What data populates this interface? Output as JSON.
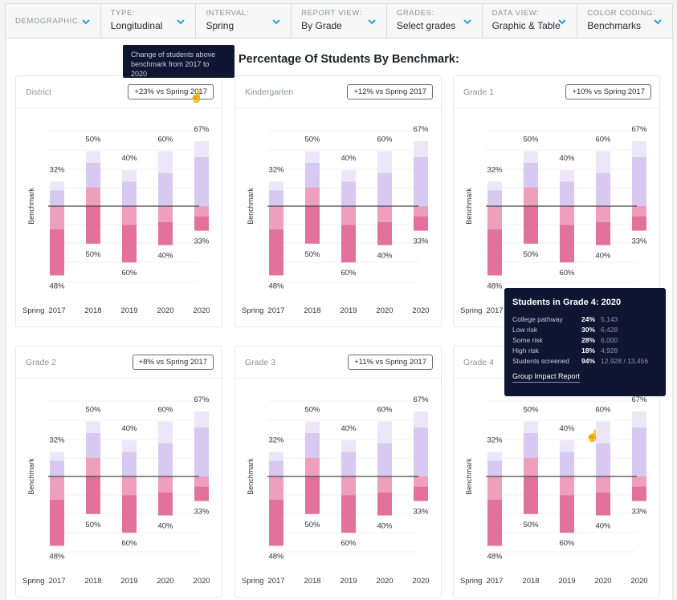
{
  "filters": [
    {
      "label": "DEMOGRAPHIC...",
      "value": ""
    },
    {
      "label": "TYPE:",
      "value": "Longitudinal"
    },
    {
      "label": "INTERVAL:",
      "value": "Spring"
    },
    {
      "label": "REPORT VIEW:",
      "value": "By Grade"
    },
    {
      "label": "GRADES:",
      "value": "Select grades"
    },
    {
      "label": "DATA VIEW:",
      "value": "Graphic & Table"
    },
    {
      "label": "COLOR CODING:",
      "value": "Benchmarks"
    }
  ],
  "page_title": "Percentage Of Students By Benchmark:",
  "header_tooltip": "Change of students above benchmark from 2017 to 2020",
  "colors": {
    "college_pathway": "#ece6f9",
    "low_risk": "#d7c9f1",
    "some_risk": "#ee9fbb",
    "high_risk": "#e2719c",
    "benchmark_line": "#444444",
    "tooltip_bg": "#0e1632"
  },
  "hover_tooltip": {
    "title": "Students in Grade 4: 2020",
    "rows": [
      {
        "label": "College pathway",
        "pct": "24%",
        "count": "5,143"
      },
      {
        "label": "Low risk",
        "pct": "30%",
        "count": "6,428"
      },
      {
        "label": "Some risk",
        "pct": "28%",
        "count": "6,000"
      },
      {
        "label": "High risk",
        "pct": "18%",
        "count": "4,928"
      },
      {
        "label": "Students screened",
        "pct": "94%",
        "count": "12,928 / 13,456"
      }
    ],
    "link": "Group Impact Report"
  },
  "chart_data": [
    {
      "type": "bar",
      "title": "District",
      "badge": "+23% vs Spring 2017",
      "ylabel": "Benchmark",
      "categories_prefix": "Spring",
      "categories": [
        "2017",
        "2018",
        "2019",
        "2020",
        "2020"
      ],
      "above_labels": [
        "32%",
        "50%",
        "40%",
        "60%",
        "67%"
      ],
      "below_labels": [
        "48%",
        "50%",
        "60%",
        "40%",
        "33%"
      ],
      "series": [
        {
          "name": "College pathway",
          "values": [
            6,
            8,
            8,
            15,
            11
          ]
        },
        {
          "name": "Low risk",
          "values": [
            11,
            17,
            17,
            23,
            34
          ]
        },
        {
          "name": "Some risk",
          "values": [
            16,
            -13,
            13,
            11,
            7
          ]
        },
        {
          "name": "High risk",
          "values": [
            32,
            26,
            26,
            16,
            10
          ]
        }
      ]
    },
    {
      "type": "bar",
      "title": "Kindergarten",
      "badge": "+12% vs Spring 2017",
      "ylabel": "Benchmark",
      "categories_prefix": "Spring",
      "categories": [
        "2017",
        "2018",
        "2019",
        "2020",
        "2020"
      ],
      "above_labels": [
        "32%",
        "50%",
        "40%",
        "60%",
        "67%"
      ],
      "below_labels": [
        "48%",
        "50%",
        "60%",
        "40%",
        "33%"
      ],
      "series": [
        {
          "name": "College pathway",
          "values": [
            6,
            8,
            8,
            15,
            11
          ]
        },
        {
          "name": "Low risk",
          "values": [
            11,
            17,
            17,
            23,
            34
          ]
        },
        {
          "name": "Some risk",
          "values": [
            16,
            -13,
            13,
            11,
            7
          ]
        },
        {
          "name": "High risk",
          "values": [
            32,
            26,
            26,
            16,
            10
          ]
        }
      ]
    },
    {
      "type": "bar",
      "title": "Grade 1",
      "badge": "+10% vs Spring 2017",
      "ylabel": "Benchmark",
      "categories_prefix": "Spring",
      "categories": [
        "2017",
        "2018",
        "2019",
        "2020",
        "2020"
      ],
      "above_labels": [
        "32%",
        "50%",
        "40%",
        "60%",
        "67%"
      ],
      "below_labels": [
        "48%",
        "50%",
        "60%",
        "40%",
        "33%"
      ],
      "series": [
        {
          "name": "College pathway",
          "values": [
            6,
            8,
            8,
            15,
            11
          ]
        },
        {
          "name": "Low risk",
          "values": [
            11,
            17,
            17,
            23,
            34
          ]
        },
        {
          "name": "Some risk",
          "values": [
            16,
            -13,
            13,
            11,
            7
          ]
        },
        {
          "name": "High risk",
          "values": [
            32,
            26,
            26,
            16,
            10
          ]
        }
      ]
    },
    {
      "type": "bar",
      "title": "Grade 2",
      "badge": "+8% vs Spring 2017",
      "ylabel": "Benchmark",
      "categories_prefix": "Spring",
      "categories": [
        "2017",
        "2018",
        "2019",
        "2020",
        "2020"
      ],
      "above_labels": [
        "32%",
        "50%",
        "40%",
        "60%",
        "67%"
      ],
      "below_labels": [
        "48%",
        "50%",
        "60%",
        "40%",
        "33%"
      ],
      "series": [
        {
          "name": "College pathway",
          "values": [
            6,
            8,
            8,
            15,
            11
          ]
        },
        {
          "name": "Low risk",
          "values": [
            11,
            17,
            17,
            23,
            34
          ]
        },
        {
          "name": "Some risk",
          "values": [
            16,
            -13,
            13,
            11,
            7
          ]
        },
        {
          "name": "High risk",
          "values": [
            32,
            26,
            26,
            16,
            10
          ]
        }
      ]
    },
    {
      "type": "bar",
      "title": "Grade 3",
      "badge": "+11% vs Spring 2017",
      "ylabel": "Benchmark",
      "categories_prefix": "Spring",
      "categories": [
        "2017",
        "2018",
        "2019",
        "2020",
        "2020"
      ],
      "above_labels": [
        "32%",
        "50%",
        "40%",
        "60%",
        "67%"
      ],
      "below_labels": [
        "48%",
        "50%",
        "60%",
        "40%",
        "33%"
      ],
      "series": [
        {
          "name": "College pathway",
          "values": [
            6,
            8,
            8,
            15,
            11
          ]
        },
        {
          "name": "Low risk",
          "values": [
            11,
            17,
            17,
            23,
            34
          ]
        },
        {
          "name": "Some risk",
          "values": [
            16,
            -13,
            13,
            11,
            7
          ]
        },
        {
          "name": "High risk",
          "values": [
            32,
            26,
            26,
            16,
            10
          ]
        }
      ]
    },
    {
      "type": "bar",
      "title": "Grade 4",
      "badge": "",
      "ylabel": "Benchmark",
      "categories_prefix": "Spring",
      "categories": [
        "2017",
        "2018",
        "2019",
        "2020",
        "2020"
      ],
      "above_labels": [
        "32%",
        "50%",
        "40%",
        "60%",
        "67%"
      ],
      "below_labels": [
        "48%",
        "50%",
        "60%",
        "40%",
        "33%"
      ],
      "series": [
        {
          "name": "College pathway",
          "values": [
            6,
            8,
            8,
            15,
            11
          ]
        },
        {
          "name": "Low risk",
          "values": [
            11,
            17,
            17,
            23,
            34
          ]
        },
        {
          "name": "Some risk",
          "values": [
            16,
            -13,
            13,
            11,
            7
          ]
        },
        {
          "name": "High risk",
          "values": [
            32,
            26,
            26,
            16,
            10
          ]
        }
      ]
    }
  ]
}
